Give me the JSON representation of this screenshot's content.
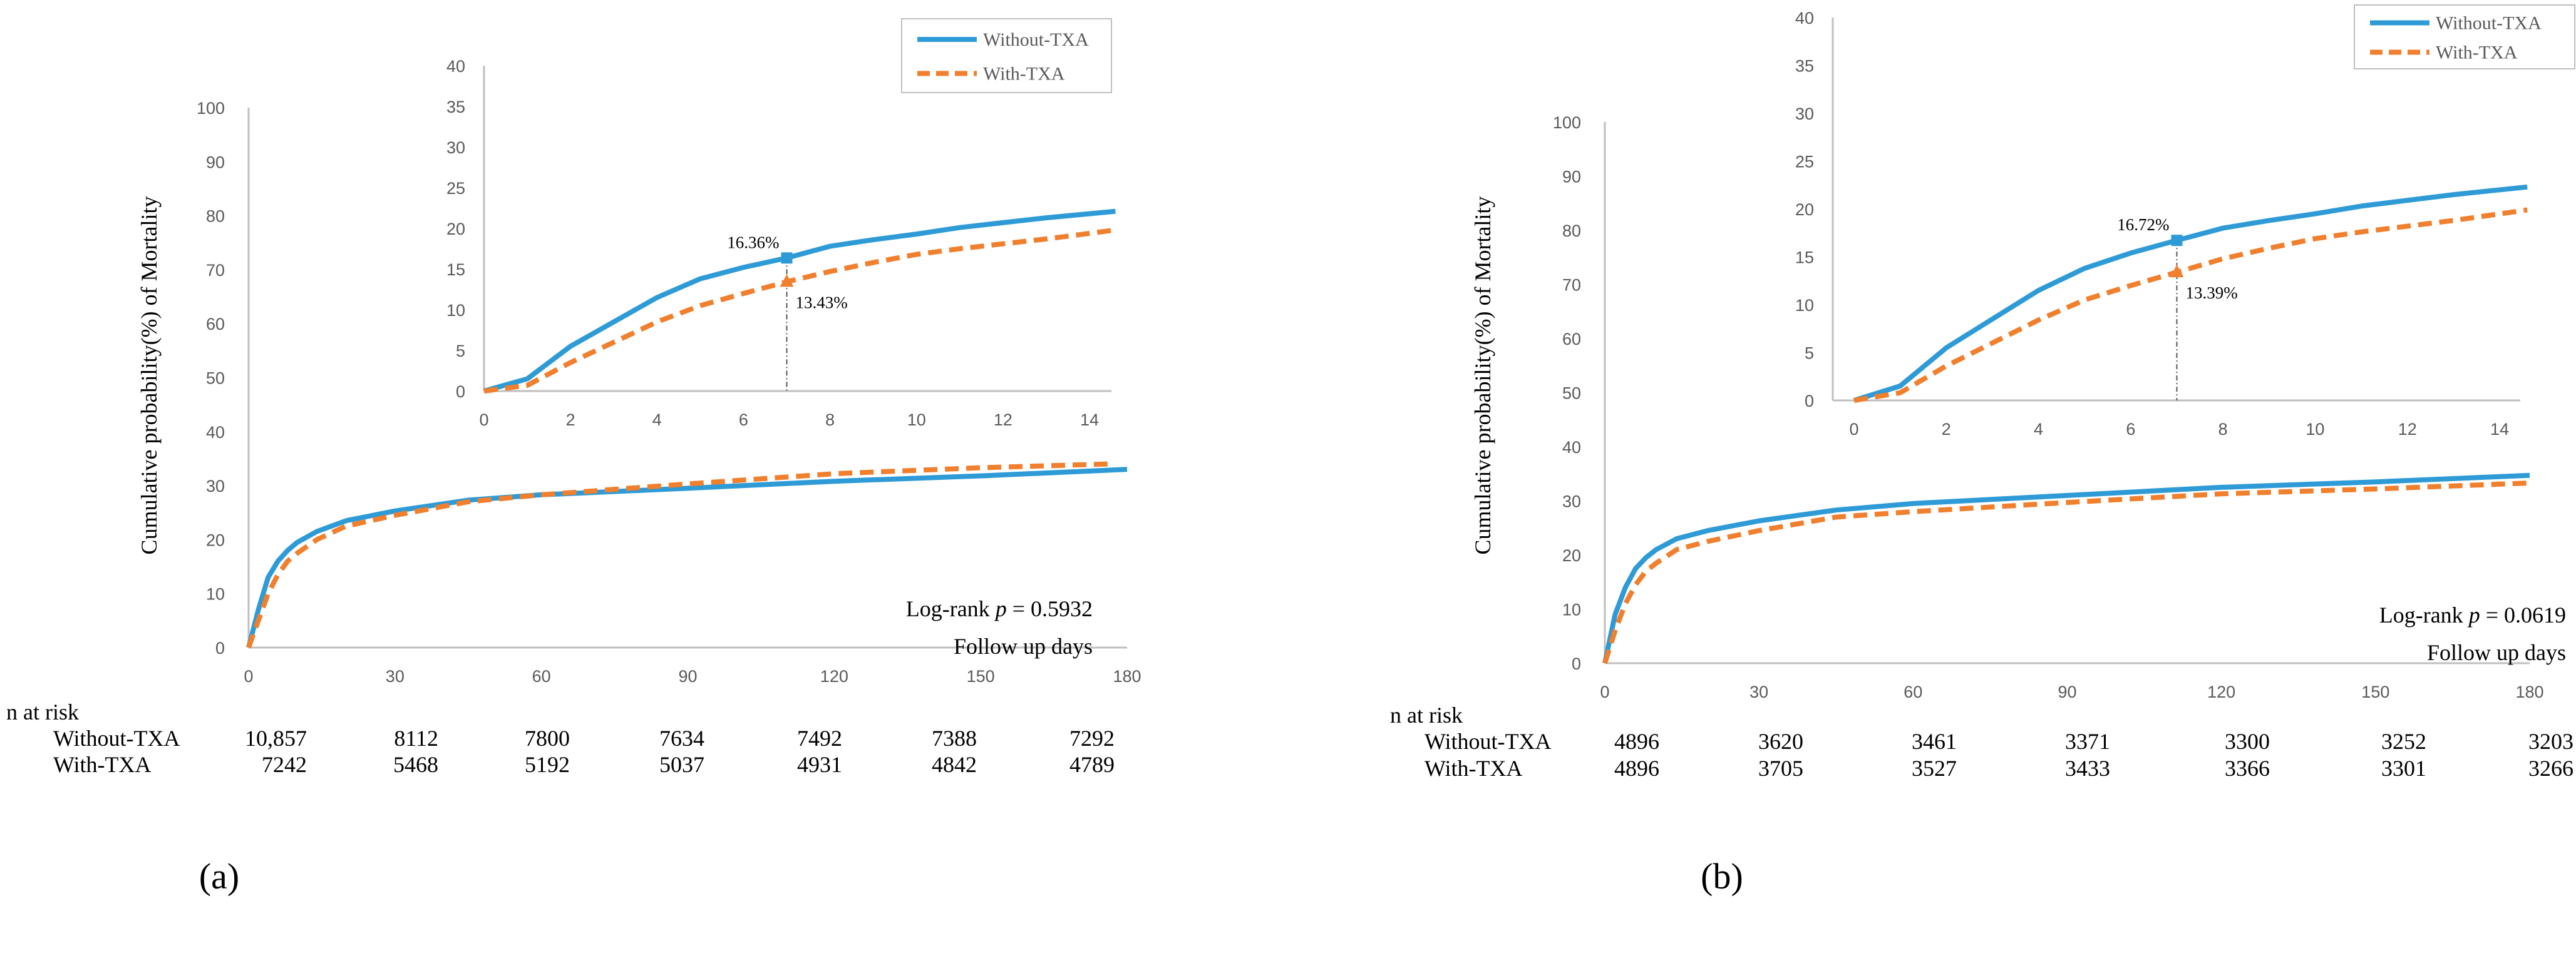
{
  "colors": {
    "without": "#2E9BD6",
    "with": "#F07F2E",
    "axis": "#BFBFBF"
  },
  "chart_data": [
    {
      "type": "line",
      "panel_label": "(a)",
      "ylabel": "Cumulative probability(%) of Mortality",
      "xlabel": "Follow up days",
      "logrank_prefix": "Log-rank ",
      "logrank_p": "p",
      "logrank_value": " = 0.5932",
      "xlim": [
        0,
        180
      ],
      "ylim": [
        0,
        100
      ],
      "xticks": [
        "0",
        "30",
        "60",
        "90",
        "120",
        "150",
        "180"
      ],
      "yticks": [
        "0",
        "10",
        "20",
        "30",
        "40",
        "50",
        "60",
        "70",
        "80",
        "90",
        "100"
      ],
      "series": [
        {
          "name": "Without-TXA",
          "style": "solid",
          "x": [
            0,
            2,
            4,
            6,
            8,
            10,
            14,
            20,
            30,
            45,
            60,
            90,
            120,
            150,
            180
          ],
          "y": [
            0,
            7,
            13,
            16,
            18,
            19.5,
            21.5,
            23.5,
            25.3,
            27.3,
            28.3,
            29.5,
            30.8,
            31.8,
            33
          ]
        },
        {
          "name": "With-TXA",
          "style": "dashed",
          "x": [
            0,
            2,
            4,
            6,
            8,
            10,
            14,
            20,
            30,
            45,
            60,
            90,
            120,
            150,
            176
          ],
          "y": [
            0,
            5,
            10,
            13.5,
            16,
            17.5,
            20,
            22.5,
            24.5,
            27,
            28.3,
            30.3,
            32.2,
            33.3,
            34
          ]
        }
      ],
      "inset": {
        "xlim": [
          0,
          14.6
        ],
        "ylim": [
          0,
          40
        ],
        "xticks": [
          "0",
          "2",
          "4",
          "6",
          "8",
          "10",
          "12",
          "14"
        ],
        "yticks": [
          "0",
          "5",
          "10",
          "15",
          "20",
          "25",
          "30",
          "35",
          "40"
        ],
        "series": [
          {
            "name": "Without-TXA",
            "x": [
              0,
              1,
              2,
              3,
              4,
              5,
              6,
              7,
              8,
              9,
              10,
              11,
              12,
              13,
              14.6
            ],
            "y": [
              0,
              1.5,
              5.5,
              8.5,
              11.5,
              13.8,
              15.2,
              16.36,
              17.8,
              18.6,
              19.3,
              20.1,
              20.7,
              21.3,
              22.1
            ]
          },
          {
            "name": "With-TXA",
            "x": [
              0,
              1,
              2,
              3,
              4,
              5,
              6,
              7,
              8,
              9,
              10,
              11,
              12,
              13,
              14.6
            ],
            "y": [
              0,
              0.7,
              3.5,
              6,
              8.5,
              10.5,
              12,
              13.43,
              14.7,
              15.8,
              16.8,
              17.5,
              18.1,
              18.7,
              19.8
            ]
          }
        ],
        "marker_day": 7,
        "annotations": [
          "16.36%",
          "13.43%"
        ]
      },
      "risk_table": {
        "title": "n at risk",
        "rows": [
          {
            "label": "Without-TXA",
            "values": [
              "10,857",
              "8112",
              "7800",
              "7634",
              "7492",
              "7388",
              "7292"
            ]
          },
          {
            "label": "With-TXA",
            "values": [
              "7242",
              "5468",
              "5192",
              "5037",
              "4931",
              "4842",
              "4789"
            ]
          }
        ]
      }
    },
    {
      "type": "line",
      "panel_label": "(b)",
      "ylabel": "Cumulative probability(%) of Mortality",
      "xlabel": "Follow up days",
      "logrank_prefix": "Log-rank ",
      "logrank_p": "p",
      "logrank_value": " = 0.0619",
      "xlim": [
        0,
        180
      ],
      "ylim": [
        0,
        100
      ],
      "xticks": [
        "0",
        "30",
        "60",
        "90",
        "120",
        "150",
        "180"
      ],
      "yticks": [
        "0",
        "10",
        "20",
        "30",
        "40",
        "50",
        "60",
        "70",
        "80",
        "90",
        "100"
      ],
      "series": [
        {
          "name": "Without-TXA",
          "style": "solid",
          "x": [
            0,
            2,
            4,
            6,
            8,
            10,
            14,
            20,
            30,
            45,
            60,
            90,
            120,
            150,
            180
          ],
          "y": [
            0,
            9,
            14,
            17.5,
            19.5,
            21,
            23,
            24.5,
            26.3,
            28.3,
            29.5,
            31,
            32.5,
            33.5,
            34.7
          ]
        },
        {
          "name": "With-TXA",
          "style": "dashed",
          "x": [
            0,
            2,
            4,
            6,
            8,
            10,
            14,
            20,
            30,
            45,
            60,
            90,
            120,
            150,
            180
          ],
          "y": [
            0,
            6,
            11,
            14.5,
            17,
            18.5,
            21,
            22.5,
            24.5,
            27,
            28,
            29.7,
            31.3,
            32.2,
            33.3
          ]
        }
      ],
      "inset": {
        "xlim": [
          0,
          14.6
        ],
        "ylim": [
          0,
          40
        ],
        "xticks": [
          "0",
          "2",
          "4",
          "6",
          "8",
          "10",
          "12",
          "14"
        ],
        "yticks": [
          "0",
          "5",
          "10",
          "15",
          "20",
          "25",
          "30",
          "35",
          "40"
        ],
        "series": [
          {
            "name": "Without-TXA",
            "x": [
              0,
              1,
              2,
              3,
              4,
              5,
              6,
              7,
              8,
              9,
              10,
              11,
              12,
              13,
              14.6
            ],
            "y": [
              0,
              1.5,
              5.5,
              8.5,
              11.5,
              13.8,
              15.4,
              16.72,
              18,
              18.8,
              19.5,
              20.3,
              20.9,
              21.5,
              22.3
            ]
          },
          {
            "name": "With-TXA",
            "x": [
              0,
              1,
              2,
              3,
              4,
              5,
              6,
              7,
              8,
              9,
              10,
              11,
              12,
              13,
              14.6
            ],
            "y": [
              0,
              0.8,
              3.6,
              6,
              8.4,
              10.5,
              12,
              13.39,
              14.8,
              15.9,
              16.9,
              17.6,
              18.2,
              18.8,
              19.9
            ]
          }
        ],
        "marker_day": 7,
        "annotations": [
          "16.72%",
          "13.39%"
        ]
      },
      "risk_table": {
        "title": "n at risk",
        "rows": [
          {
            "label": "Without-TXA",
            "values": [
              "4896",
              "3620",
              "3461",
              "3371",
              "3300",
              "3252",
              "3203"
            ]
          },
          {
            "label": "With-TXA",
            "values": [
              "4896",
              "3705",
              "3527",
              "3433",
              "3366",
              "3301",
              "3266"
            ]
          }
        ]
      }
    }
  ]
}
